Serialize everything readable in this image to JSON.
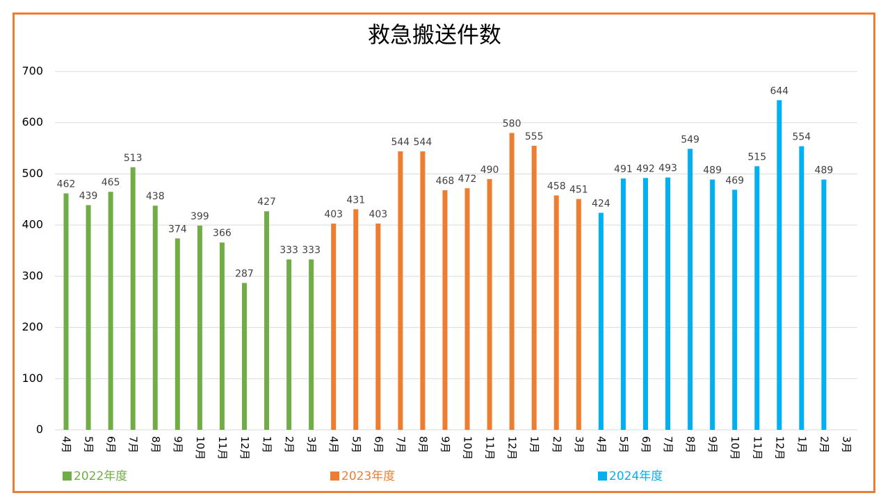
{
  "chart_data": {
    "type": "bar",
    "title": "救急搬送件数",
    "categories": [
      "4月",
      "5月",
      "6月",
      "7月",
      "8月",
      "9月",
      "10月",
      "11月",
      "12月",
      "1月",
      "2月",
      "3月",
      "4月",
      "5月",
      "6月",
      "7月",
      "8月",
      "9月",
      "10月",
      "11月",
      "12月",
      "1月",
      "2月",
      "3月",
      "4月",
      "5月",
      "6月",
      "7月",
      "8月",
      "9月",
      "10月",
      "11月",
      "12月",
      "1月",
      "2月",
      "3月"
    ],
    "series": [
      {
        "name": "2022年度",
        "color": "#70ad47",
        "values": [
          462,
          439,
          465,
          513,
          438,
          374,
          399,
          366,
          287,
          427,
          333,
          333,
          null,
          null,
          null,
          null,
          null,
          null,
          null,
          null,
          null,
          null,
          null,
          null,
          null,
          null,
          null,
          null,
          null,
          null,
          null,
          null,
          null,
          null,
          null,
          null
        ]
      },
      {
        "name": "2023年度",
        "color": "#ed7d31",
        "values": [
          null,
          null,
          null,
          null,
          null,
          null,
          null,
          null,
          null,
          null,
          null,
          null,
          403,
          431,
          403,
          544,
          544,
          468,
          472,
          490,
          580,
          555,
          458,
          451,
          null,
          null,
          null,
          null,
          null,
          null,
          null,
          null,
          null,
          null,
          null,
          null
        ]
      },
      {
        "name": "2024年度",
        "color": "#00b0f0",
        "values": [
          null,
          null,
          null,
          null,
          null,
          null,
          null,
          null,
          null,
          null,
          null,
          null,
          null,
          null,
          null,
          null,
          null,
          null,
          null,
          null,
          null,
          null,
          null,
          null,
          424,
          491,
          492,
          493,
          549,
          489,
          469,
          515,
          644,
          554,
          489,
          null
        ]
      }
    ],
    "ylim": [
      0,
      700
    ],
    "yticks": [
      0,
      100,
      200,
      300,
      400,
      500,
      600,
      700
    ],
    "grid": true,
    "legend": "bottom"
  }
}
